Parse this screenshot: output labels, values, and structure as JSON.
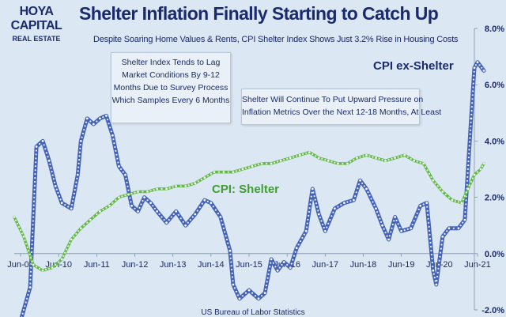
{
  "logo": {
    "line1": "HOYA CAPITAL",
    "line2": "REAL ESTATE"
  },
  "title": "Shelter Inflation Finally Starting to Catch Up",
  "subtitle": "Despite Soaring Home Values & Rents, CPI Shelter Index Shows Just 3.2% Rise in Housing Costs",
  "notes": {
    "note1": [
      "Shelter Index Tends to Lag",
      "Market Conditions By 9-12",
      "Months Due to Survey Process",
      "Which Samples Every 6 Months"
    ],
    "note2": [
      "Shelter Will Continue To Put Upward Pressure on",
      "Inflation Metrics Over the Next 12-18 Months, At Least"
    ]
  },
  "source": "US Bureau of Labor Statistics",
  "colors": {
    "background": "#dbe7f2",
    "ex_shelter": "#4463b8",
    "shelter": "#62b848",
    "text": "#1a2a6c"
  },
  "chart_data": {
    "type": "line",
    "x_unit": "month",
    "xlim": [
      "2009-04",
      "2021-08"
    ],
    "x_ticks": [
      "Jun-09",
      "Jun-10",
      "Jun-11",
      "Jun-12",
      "Jun-13",
      "Jun-14",
      "Jun-15",
      "Jun-16",
      "Jun-17",
      "Jun-18",
      "Jun-19",
      "Jun-20",
      "Jun-21"
    ],
    "y_ticks": [
      "8.0%",
      "6.0%",
      "4.0%",
      "2.0%",
      "0.0%",
      "-2.0%"
    ],
    "ylim": [
      -2.0,
      8.0
    ],
    "y_axis_position": "right",
    "grid": false,
    "series": [
      {
        "name": "CPI ex-Shelter",
        "label_position": "upper right",
        "points": [
          [
            "2009-06",
            -2.4
          ],
          [
            "2009-09",
            -1.2
          ],
          [
            "2009-11",
            3.8
          ],
          [
            "2010-01",
            4.0
          ],
          [
            "2010-03",
            3.3
          ],
          [
            "2010-05",
            2.4
          ],
          [
            "2010-07",
            1.8
          ],
          [
            "2010-10",
            1.6
          ],
          [
            "2010-12",
            2.8
          ],
          [
            "2011-01",
            4.0
          ],
          [
            "2011-03",
            4.8
          ],
          [
            "2011-05",
            4.6
          ],
          [
            "2011-07",
            4.8
          ],
          [
            "2011-09",
            4.9
          ],
          [
            "2011-11",
            4.2
          ],
          [
            "2012-01",
            3.1
          ],
          [
            "2012-03",
            2.8
          ],
          [
            "2012-05",
            1.7
          ],
          [
            "2012-07",
            1.5
          ],
          [
            "2012-09",
            2.0
          ],
          [
            "2012-11",
            1.8
          ],
          [
            "2013-01",
            1.5
          ],
          [
            "2013-04",
            1.1
          ],
          [
            "2013-07",
            1.5
          ],
          [
            "2013-10",
            1.0
          ],
          [
            "2014-01",
            1.4
          ],
          [
            "2014-04",
            1.9
          ],
          [
            "2014-06",
            1.8
          ],
          [
            "2014-09",
            1.3
          ],
          [
            "2014-12",
            0.1
          ],
          [
            "2015-01",
            -1.1
          ],
          [
            "2015-03",
            -1.6
          ],
          [
            "2015-06",
            -1.3
          ],
          [
            "2015-09",
            -1.6
          ],
          [
            "2015-11",
            -1.4
          ],
          [
            "2016-01",
            -0.2
          ],
          [
            "2016-03",
            -0.6
          ],
          [
            "2016-05",
            -0.3
          ],
          [
            "2016-07",
            -0.5
          ],
          [
            "2016-09",
            0.2
          ],
          [
            "2016-12",
            0.8
          ],
          [
            "2017-02",
            2.3
          ],
          [
            "2017-04",
            1.4
          ],
          [
            "2017-06",
            0.8
          ],
          [
            "2017-09",
            1.6
          ],
          [
            "2017-12",
            1.8
          ],
          [
            "2018-03",
            1.9
          ],
          [
            "2018-05",
            2.6
          ],
          [
            "2018-07",
            2.3
          ],
          [
            "2018-10",
            1.6
          ],
          [
            "2018-12",
            1.0
          ],
          [
            "2019-02",
            0.5
          ],
          [
            "2019-04",
            1.3
          ],
          [
            "2019-06",
            0.8
          ],
          [
            "2019-09",
            0.9
          ],
          [
            "2019-12",
            1.7
          ],
          [
            "2020-02",
            1.8
          ],
          [
            "2020-04",
            -0.6
          ],
          [
            "2020-05",
            -1.1
          ],
          [
            "2020-07",
            0.6
          ],
          [
            "2020-09",
            0.9
          ],
          [
            "2020-12",
            0.9
          ],
          [
            "2021-02",
            1.2
          ],
          [
            "2021-04",
            4.8
          ],
          [
            "2021-05",
            6.6
          ],
          [
            "2021-06",
            6.8
          ],
          [
            "2021-08",
            6.5
          ]
        ]
      },
      {
        "name": "CPI: Shelter",
        "label_position": "center",
        "points": [
          [
            "2009-04",
            1.3
          ],
          [
            "2009-07",
            0.6
          ],
          [
            "2009-10",
            -0.4
          ],
          [
            "2010-01",
            -0.6
          ],
          [
            "2010-04",
            -0.5
          ],
          [
            "2010-07",
            -0.2
          ],
          [
            "2010-10",
            0.5
          ],
          [
            "2011-01",
            0.9
          ],
          [
            "2011-04",
            1.2
          ],
          [
            "2011-07",
            1.5
          ],
          [
            "2011-10",
            1.7
          ],
          [
            "2012-01",
            2.0
          ],
          [
            "2012-04",
            2.1
          ],
          [
            "2012-07",
            2.2
          ],
          [
            "2012-10",
            2.2
          ],
          [
            "2013-01",
            2.3
          ],
          [
            "2013-04",
            2.3
          ],
          [
            "2013-07",
            2.4
          ],
          [
            "2013-10",
            2.4
          ],
          [
            "2014-01",
            2.5
          ],
          [
            "2014-04",
            2.7
          ],
          [
            "2014-07",
            2.9
          ],
          [
            "2014-10",
            2.9
          ],
          [
            "2015-01",
            2.9
          ],
          [
            "2015-04",
            3.0
          ],
          [
            "2015-07",
            3.1
          ],
          [
            "2015-10",
            3.2
          ],
          [
            "2016-01",
            3.2
          ],
          [
            "2016-04",
            3.3
          ],
          [
            "2016-07",
            3.4
          ],
          [
            "2016-10",
            3.5
          ],
          [
            "2017-01",
            3.6
          ],
          [
            "2017-04",
            3.4
          ],
          [
            "2017-07",
            3.3
          ],
          [
            "2017-10",
            3.2
          ],
          [
            "2018-01",
            3.2
          ],
          [
            "2018-04",
            3.4
          ],
          [
            "2018-07",
            3.5
          ],
          [
            "2018-10",
            3.4
          ],
          [
            "2019-01",
            3.3
          ],
          [
            "2019-04",
            3.4
          ],
          [
            "2019-07",
            3.5
          ],
          [
            "2019-10",
            3.3
          ],
          [
            "2020-01",
            3.2
          ],
          [
            "2020-04",
            2.6
          ],
          [
            "2020-07",
            2.2
          ],
          [
            "2020-10",
            1.9
          ],
          [
            "2021-01",
            1.8
          ],
          [
            "2021-03",
            2.3
          ],
          [
            "2021-05",
            2.8
          ],
          [
            "2021-07",
            3.0
          ],
          [
            "2021-08",
            3.2
          ]
        ]
      }
    ]
  }
}
